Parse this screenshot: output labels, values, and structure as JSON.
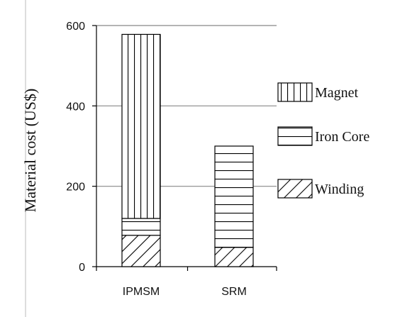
{
  "chart_data": {
    "type": "bar",
    "stacked": true,
    "title": "",
    "xlabel": "",
    "ylabel": "Material cost (US$)",
    "ylim": [
      0,
      600
    ],
    "yticks": [
      0,
      200,
      400,
      600
    ],
    "grid": true,
    "legend_position": "right",
    "categories": [
      "IPMSM",
      "SRM"
    ],
    "series": [
      {
        "name": "Winding",
        "pattern": "diagonal-hatch",
        "values": [
          78,
          48
        ]
      },
      {
        "name": "Iron Core",
        "pattern": "horizontal-lines",
        "values": [
          42,
          252
        ]
      },
      {
        "name": "Magnet",
        "pattern": "vertical-lines",
        "values": [
          458,
          0
        ]
      }
    ],
    "legend_order": [
      "Magnet",
      "Iron Core",
      "Winding"
    ]
  },
  "colors": {
    "line": "#000000",
    "grid": "#888888",
    "background": "#ffffff"
  }
}
